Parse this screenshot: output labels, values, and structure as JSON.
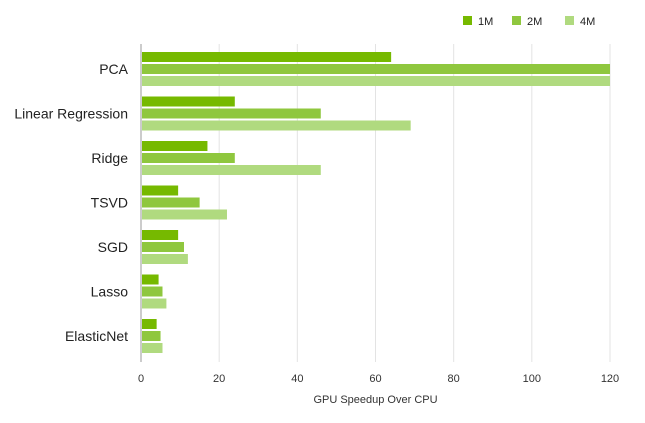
{
  "chart_data": {
    "type": "bar",
    "orientation": "horizontal",
    "categories": [
      "PCA",
      "Linear Regression",
      "Ridge",
      "TSVD",
      "SGD",
      "Lasso",
      "ElasticNet"
    ],
    "series": [
      {
        "name": "1M",
        "color": "#76b900",
        "values": [
          64,
          24,
          17,
          9.5,
          9.5,
          4.5,
          4
        ]
      },
      {
        "name": "2M",
        "color": "#8fc73e",
        "values": [
          120,
          46,
          24,
          15,
          11,
          5.5,
          5
        ]
      },
      {
        "name": "4M",
        "color": "#b0da7f",
        "values": [
          120,
          69,
          46,
          22,
          12,
          6.5,
          5.5
        ]
      }
    ],
    "xlabel": "GPU Speedup Over CPU",
    "xlim": [
      0,
      120
    ],
    "xticks": [
      0,
      20,
      40,
      60,
      80,
      100,
      120
    ],
    "grid": true,
    "legend_position": "top-right"
  }
}
